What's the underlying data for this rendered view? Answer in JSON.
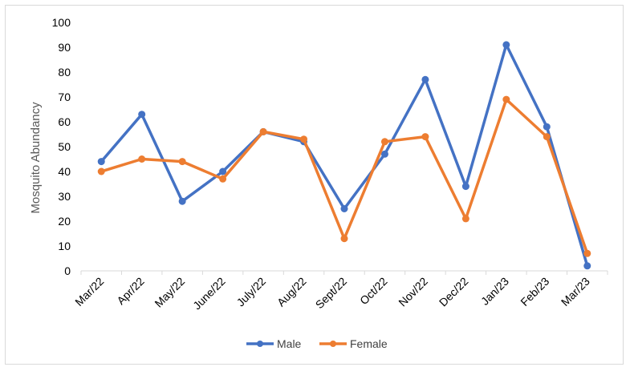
{
  "chart_data": {
    "type": "line",
    "title": "",
    "xlabel": "",
    "ylabel": "Mosquito Abundancy",
    "ylim": [
      0,
      100
    ],
    "yticks": [
      0,
      10,
      20,
      30,
      40,
      50,
      60,
      70,
      80,
      90,
      100
    ],
    "grid": false,
    "legend_position": "bottom",
    "categories": [
      "Mar/22",
      "Apr/22",
      "May/22",
      "June/22",
      "July/22",
      "Aug/22",
      "Sept/22",
      "Oct/22",
      "Nov/22",
      "Dec/22",
      "Jan/23",
      "Feb/23",
      "Mar/23"
    ],
    "series": [
      {
        "name": "Male",
        "color": "#4472c4",
        "values": [
          44,
          63,
          28,
          40,
          56,
          52,
          25,
          47,
          77,
          34,
          91,
          58,
          2
        ]
      },
      {
        "name": "Female",
        "color": "#ed7d31",
        "values": [
          40,
          45,
          44,
          37,
          56,
          53,
          13,
          52,
          54,
          21,
          69,
          54,
          7
        ]
      }
    ]
  }
}
